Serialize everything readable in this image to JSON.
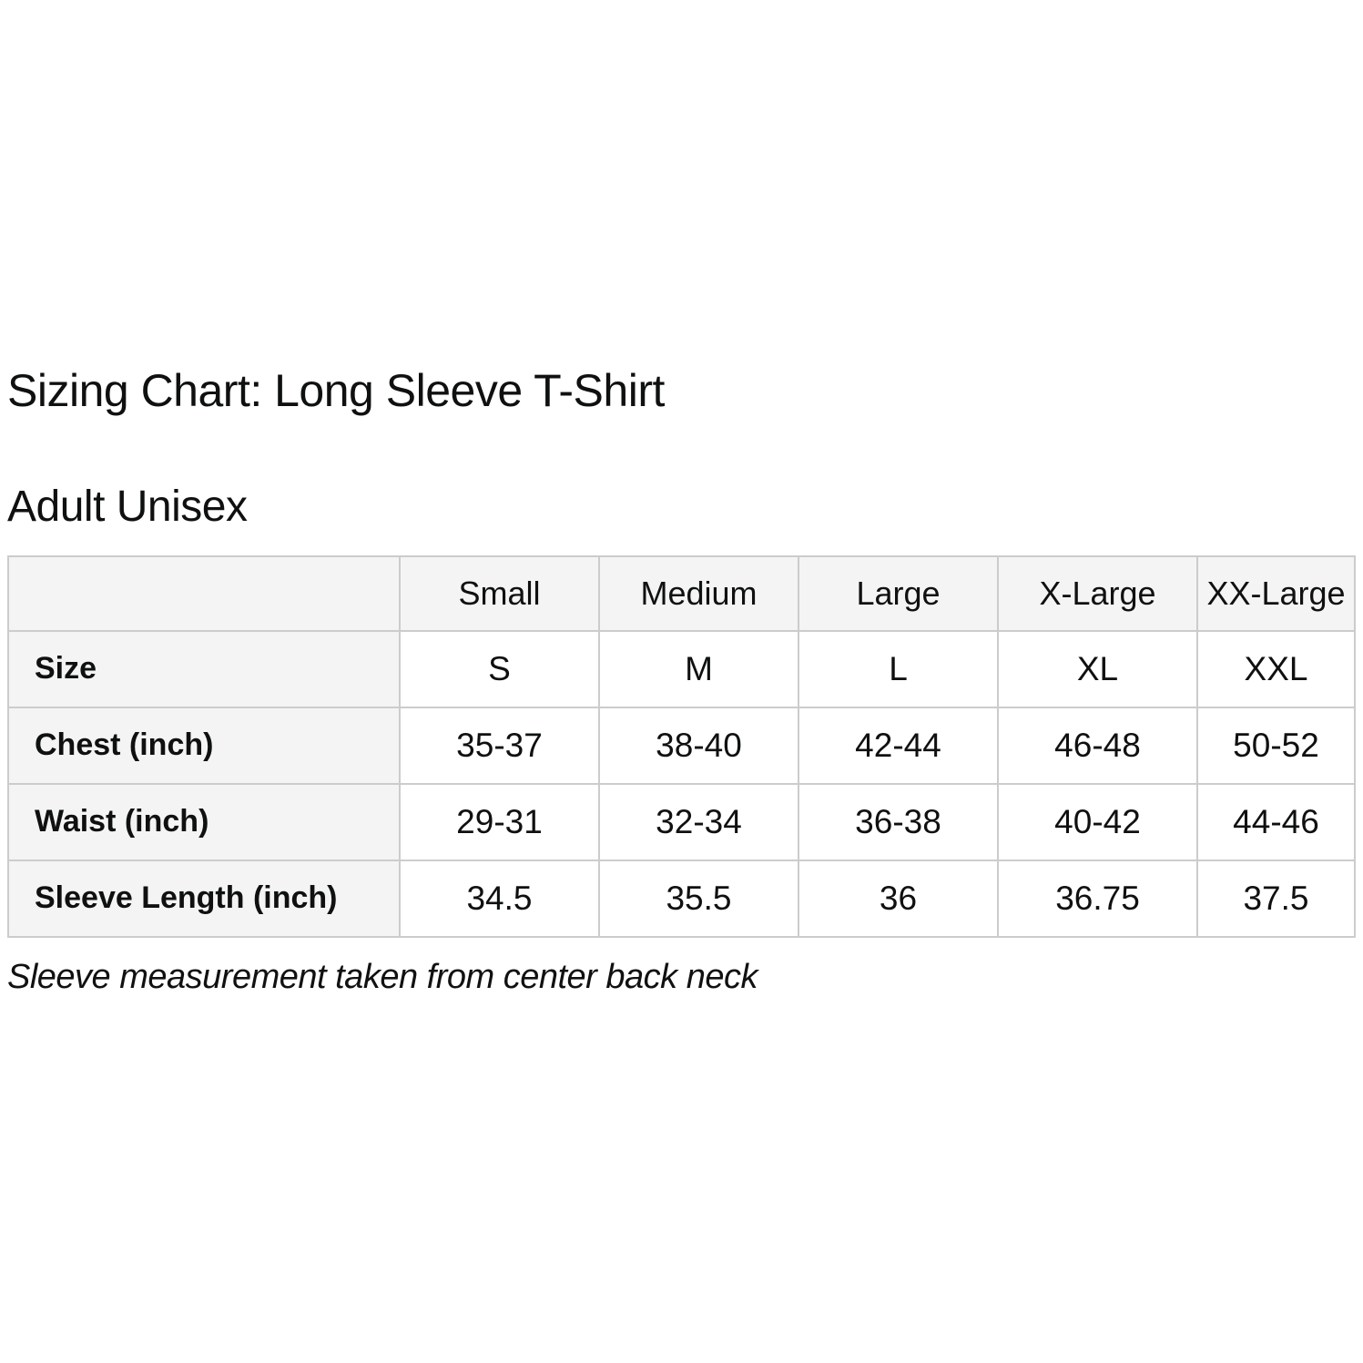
{
  "page": {
    "title": "Sizing Chart: Long Sleeve T-Shirt",
    "subtitle": "Adult Unisex",
    "footnote": "Sleeve measurement taken from center back neck"
  },
  "chart_data": {
    "type": "table",
    "title": "Sizing Chart: Long Sleeve T-Shirt",
    "subtitle": "Adult Unisex",
    "columns": [
      "",
      "Small",
      "Medium",
      "Large",
      "X-Large",
      "XX-Large"
    ],
    "rows": [
      {
        "label": "Size",
        "values": [
          "S",
          "M",
          "L",
          "XL",
          "XXL"
        ]
      },
      {
        "label": "Chest (inch)",
        "values": [
          "35-37",
          "38-40",
          "42-44",
          "46-48",
          "50-52"
        ]
      },
      {
        "label": "Waist (inch)",
        "values": [
          "29-31",
          "32-34",
          "36-38",
          "40-42",
          "44-46"
        ]
      },
      {
        "label": "Sleeve Length (inch)",
        "values": [
          "34.5",
          "35.5",
          "36",
          "36.75",
          "37.5"
        ]
      }
    ],
    "footnote": "Sleeve measurement taken from center back neck"
  },
  "colors": {
    "background": "#ffffff",
    "header_cell_bg": "#f4f4f4",
    "label_cell_bg": "#f4f4f4",
    "value_cell_bg": "#ffffff",
    "cell_border": "#cccccc",
    "text": "#0f1111"
  }
}
